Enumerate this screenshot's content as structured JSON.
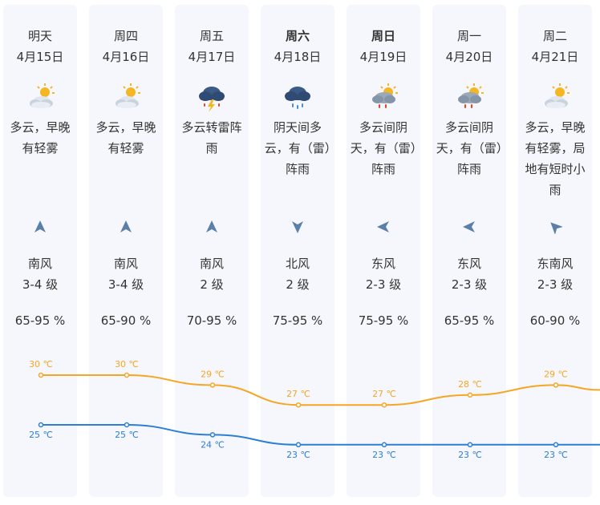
{
  "days": [
    {
      "day": "明天",
      "date": "4月15日",
      "icon": "partly-cloudy-icon",
      "desc": "多云，早晚有轻雾",
      "wind_dir": "南风",
      "wind_level": "3-4 级",
      "humidity": "65-95 %",
      "arrow": "up",
      "bold": false
    },
    {
      "day": "周四",
      "date": "4月16日",
      "icon": "partly-cloudy-icon",
      "desc": "多云，早晚有轻雾",
      "wind_dir": "南风",
      "wind_level": "3-4 级",
      "humidity": "65-90 %",
      "arrow": "up",
      "bold": false
    },
    {
      "day": "周五",
      "date": "4月17日",
      "icon": "thunderstorm-icon",
      "desc": "多云转雷阵雨",
      "wind_dir": "南风",
      "wind_level": "2 级",
      "humidity": "70-95 %",
      "arrow": "up",
      "bold": false
    },
    {
      "day": "周六",
      "date": "4月18日",
      "icon": "rain-cloud-icon",
      "desc": "阴天间多云，有（雷）阵雨",
      "wind_dir": "北风",
      "wind_level": "2 级",
      "humidity": "75-95 %",
      "arrow": "down",
      "bold": true
    },
    {
      "day": "周日",
      "date": "4月19日",
      "icon": "sun-cloud-rain-icon",
      "desc": "多云间阴天，有（雷）阵雨",
      "wind_dir": "东风",
      "wind_level": "2-3 级",
      "humidity": "75-95 %",
      "arrow": "left",
      "bold": true
    },
    {
      "day": "周一",
      "date": "4月20日",
      "icon": "sun-cloud-rain-icon",
      "desc": "多云间阴天，有（雷）阵雨",
      "wind_dir": "东风",
      "wind_level": "2-3 级",
      "humidity": "65-95 %",
      "arrow": "left",
      "bold": false
    },
    {
      "day": "周二",
      "date": "4月21日",
      "icon": "partly-cloudy-icon",
      "desc": "多云，早晚有轻雾，局地有短时小雨",
      "wind_dir": "东南风",
      "wind_level": "2-3 级",
      "humidity": "60-90 %",
      "arrow": "up-left",
      "bold": false
    }
  ],
  "chart_data": {
    "type": "line",
    "x": [
      "4月15日",
      "4月16日",
      "4月17日",
      "4月18日",
      "4月19日",
      "4月20日",
      "4月21日"
    ],
    "series": [
      {
        "values": [
          30,
          30,
          29,
          27,
          27,
          28,
          29
        ],
        "color": "#f5a623"
      },
      {
        "values": [
          25,
          25,
          24,
          23,
          23,
          23,
          23
        ],
        "color": "#2b7fd4"
      }
    ],
    "unit": "℃"
  },
  "colors": {
    "high": "#f5a623",
    "low": "#2b7fd4",
    "arrow": "#5a7fa8",
    "column_bg": "#f5f7fc"
  }
}
